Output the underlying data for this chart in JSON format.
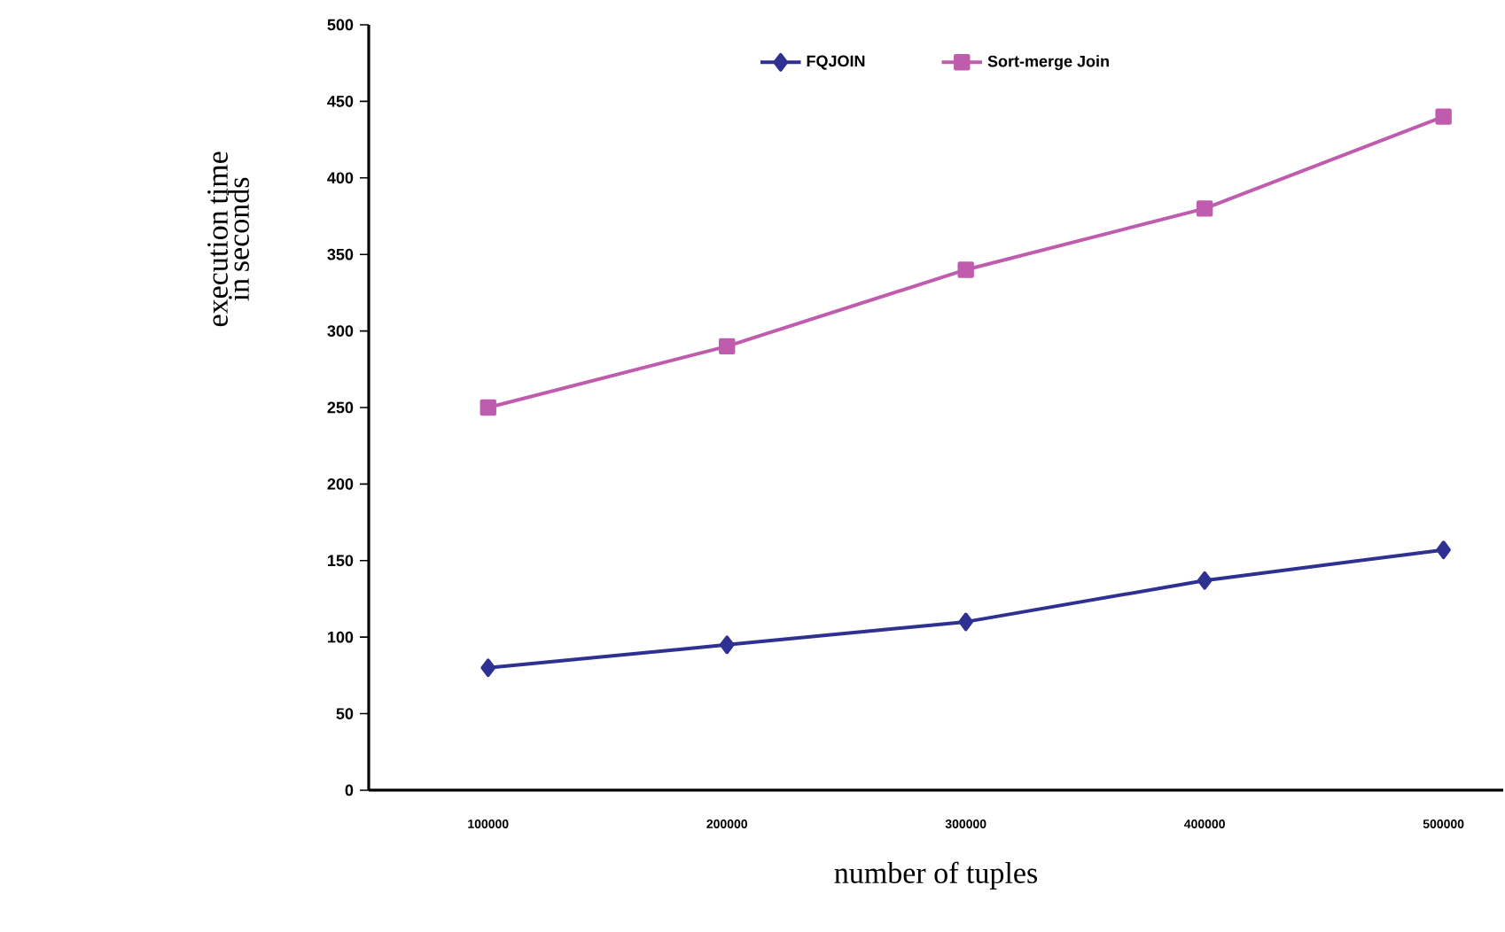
{
  "chart_data": {
    "type": "line",
    "xlabel": "number of tuples",
    "ylabel": "execution time in seconds",
    "categories": [
      "100000",
      "200000",
      "300000",
      "400000",
      "500000"
    ],
    "series": [
      {
        "name": "FQJOIN",
        "color": "#2e3192",
        "values": [
          80,
          95,
          110,
          137,
          157
        ],
        "marker": "diamond"
      },
      {
        "name": "Sort-merge Join",
        "color": "#c05cae",
        "values": [
          250,
          290,
          340,
          380,
          440
        ],
        "marker": "square"
      }
    ],
    "ylim": [
      0,
      500
    ],
    "yticks": [
      0,
      50,
      100,
      150,
      200,
      250,
      300,
      350,
      400,
      450,
      500
    ],
    "grid": false,
    "legend": "top"
  }
}
